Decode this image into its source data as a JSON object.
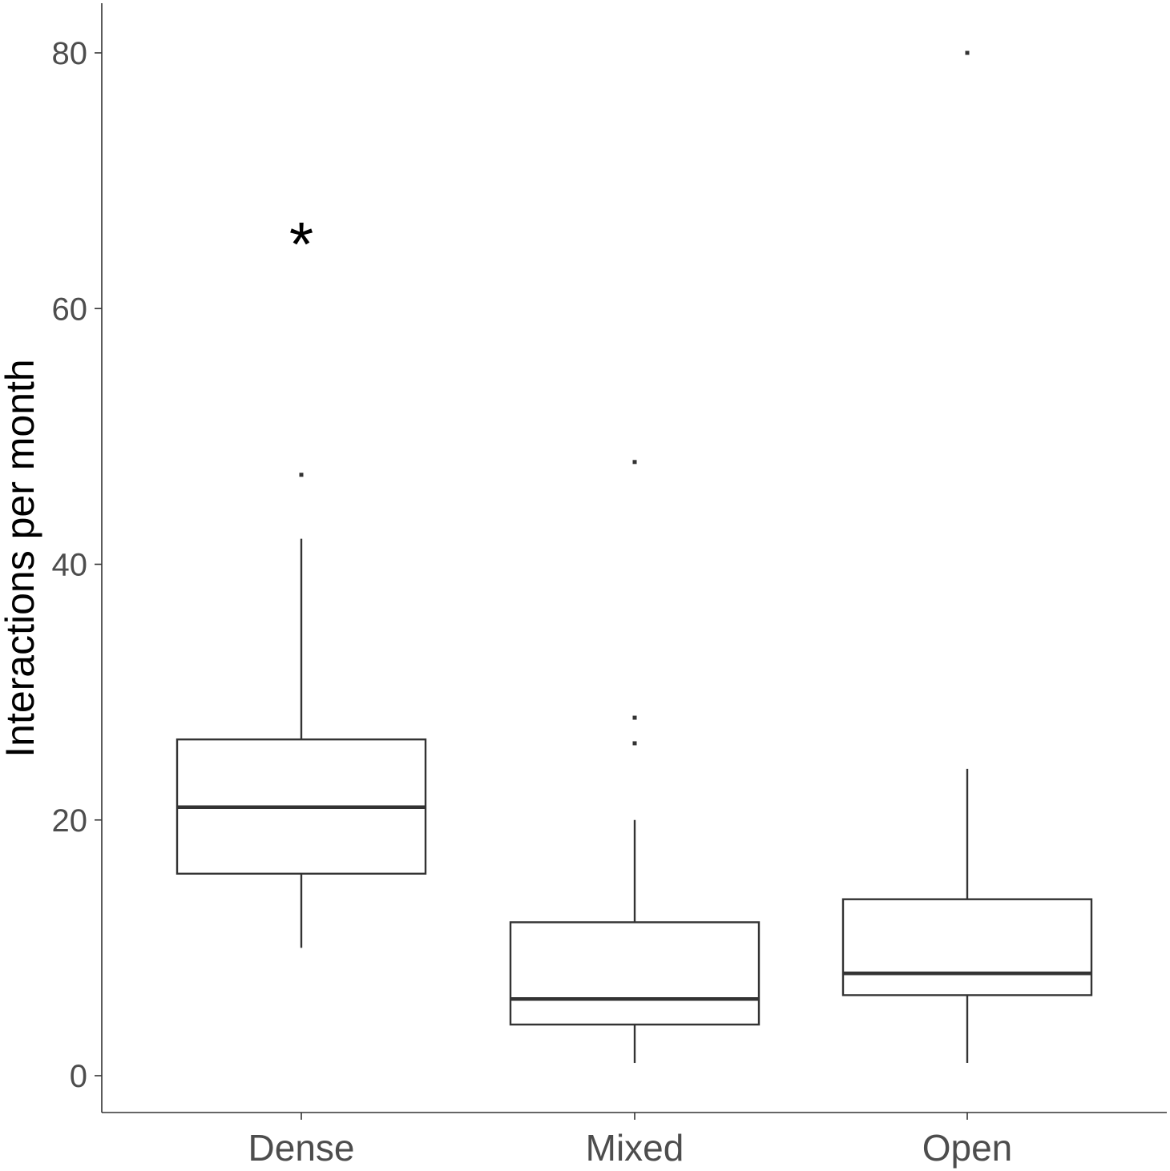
{
  "chart_data": {
    "type": "boxplot",
    "title": "",
    "xlabel": "",
    "ylabel": "Interactions per month",
    "ylim": [
      -3,
      84
    ],
    "yticks": [
      0,
      20,
      40,
      60,
      80
    ],
    "ytick_labels": [
      "0",
      "20",
      "40",
      "60",
      "80"
    ],
    "grid": false,
    "legend": "none",
    "categories": [
      "Dense",
      "Mixed",
      "Open"
    ],
    "boxes": [
      {
        "category": "Dense",
        "whisker_low": 10,
        "q1": 15.8,
        "median": 21,
        "q3": 26.3,
        "whisker_high": 42,
        "outliers": [
          47
        ]
      },
      {
        "category": "Mixed",
        "whisker_low": 1,
        "q1": 4,
        "median": 6,
        "q3": 12,
        "whisker_high": 20,
        "outliers": [
          26,
          28,
          48
        ]
      },
      {
        "category": "Open",
        "whisker_low": 1,
        "q1": 6.3,
        "median": 8,
        "q3": 13.8,
        "whisker_high": 24,
        "outliers": [
          80
        ]
      }
    ],
    "annotations": [
      {
        "text": "*",
        "category": "Dense",
        "y": 66
      }
    ],
    "colors": {
      "box_stroke": "#333333",
      "axis": "#333333",
      "tick_text": "#4d4d4d",
      "title_text": "#000000"
    }
  }
}
